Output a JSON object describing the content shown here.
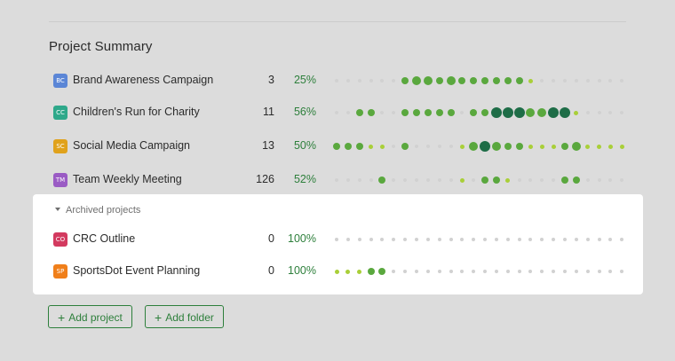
{
  "section": {
    "title": "Project Summary"
  },
  "colors": {
    "accent": "#2d7f3b",
    "dot_empty": "#d1d1d1",
    "dot_lime": "#a9cf38",
    "dot_green": "#5aa83e",
    "dot_dark": "#1e6d47"
  },
  "projects": [
    {
      "initials": "BC",
      "badge_color": "#5b86d6",
      "name": "Brand Awareness Campaign",
      "count": "3",
      "percent": "25%",
      "dots": [
        0,
        0,
        0,
        0,
        0,
        0,
        2,
        3,
        3,
        2,
        3,
        2,
        2,
        2,
        2,
        2,
        2,
        1,
        0,
        0,
        0,
        0,
        0,
        0,
        0,
        0
      ]
    },
    {
      "initials": "CC",
      "badge_color": "#2ea88a",
      "name": "Children's Run for Charity",
      "count": "11",
      "percent": "56%",
      "dots": [
        0,
        0,
        2,
        2,
        0,
        0,
        2,
        2,
        2,
        2,
        2,
        0,
        2,
        2,
        4,
        4,
        4,
        3,
        3,
        4,
        4,
        1,
        0,
        0,
        0,
        0
      ]
    },
    {
      "initials": "SC",
      "badge_color": "#e0a21c",
      "name": "Social Media Campaign",
      "count": "13",
      "percent": "50%",
      "dots": [
        2,
        2,
        2,
        1,
        1,
        0,
        2,
        0,
        0,
        0,
        0,
        1,
        3,
        4,
        3,
        2,
        2,
        1,
        1,
        1,
        2,
        3,
        1,
        1,
        1,
        1
      ]
    },
    {
      "initials": "TM",
      "badge_color": "#9a5bc4",
      "name": "Team Weekly Meeting",
      "count": "126",
      "percent": "52%",
      "dots": [
        0,
        0,
        0,
        0,
        2,
        0,
        0,
        0,
        0,
        0,
        0,
        1,
        0,
        2,
        2,
        1,
        0,
        0,
        0,
        0,
        2,
        2,
        0,
        0,
        0,
        0
      ]
    }
  ],
  "archive": {
    "header": "Archived projects",
    "projects": [
      {
        "initials": "CO",
        "badge_color": "#d33a5f",
        "name": "CRC Outline",
        "count": "0",
        "percent": "100%",
        "dots": [
          0,
          0,
          0,
          0,
          0,
          0,
          0,
          0,
          0,
          0,
          0,
          0,
          0,
          0,
          0,
          0,
          0,
          0,
          0,
          0,
          0,
          0,
          0,
          0,
          0,
          0
        ]
      },
      {
        "initials": "SP",
        "badge_color": "#f07f1a",
        "name": "SportsDot Event Planning",
        "count": "0",
        "percent": "100%",
        "dots": [
          1,
          1,
          1,
          2,
          2,
          0,
          0,
          0,
          0,
          0,
          0,
          0,
          0,
          0,
          0,
          0,
          0,
          0,
          0,
          0,
          0,
          0,
          0,
          0,
          0,
          0
        ]
      }
    ]
  },
  "actions": {
    "add_project": "Add project",
    "add_folder": "Add folder"
  }
}
